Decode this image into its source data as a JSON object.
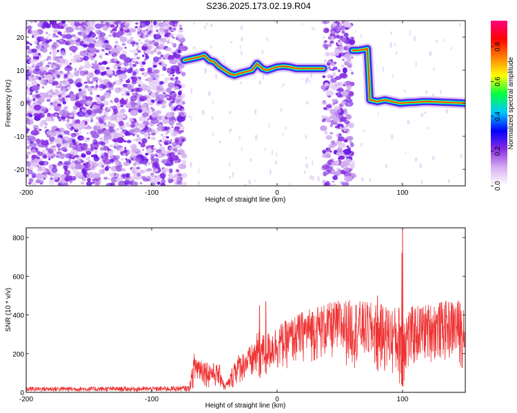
{
  "title": "S236.2025.173.02.19.R04",
  "chart_data": [
    {
      "type": "heatmap",
      "xlabel": "Height of straight line (km)",
      "ylabel": "Frequency (Hz)",
      "xlim": [
        -200,
        150
      ],
      "ylim": [
        -25,
        25
      ],
      "x_ticks": [
        "-200",
        "-100",
        "0",
        "100"
      ],
      "y_ticks": [
        "-20",
        "-10",
        "0",
        "10",
        "20"
      ],
      "colorbar": {
        "label": "Normalized spectral amplitude",
        "range": [
          0,
          0.95
        ],
        "ticks": [
          "0.0",
          "0.2",
          "0.4",
          "0.6",
          "0.8"
        ],
        "colors": [
          "#ffffff",
          "#d8b0f0",
          "#8a2be2",
          "#0000ff",
          "#00c8ff",
          "#00ff40",
          "#ffff00",
          "#ff8000",
          "#ff0000",
          "#ff0080"
        ]
      },
      "noise_regions": [
        {
          "x": [
            -200,
            -74
          ],
          "y": [
            -25,
            25
          ],
          "note_level": "dense"
        },
        {
          "x": [
            37,
            60
          ],
          "y": [
            -25,
            25
          ],
          "note_level": "dense"
        }
      ],
      "ridge": [
        {
          "x": -74,
          "y": 13
        },
        {
          "x": -68,
          "y": 13.5
        },
        {
          "x": -62,
          "y": 14
        },
        {
          "x": -58,
          "y": 14.5
        },
        {
          "x": -54,
          "y": 13
        },
        {
          "x": -50,
          "y": 12.5
        },
        {
          "x": -46,
          "y": 11
        },
        {
          "x": -42,
          "y": 10
        },
        {
          "x": -38,
          "y": 9
        },
        {
          "x": -34,
          "y": 8.5
        },
        {
          "x": -30,
          "y": 9
        },
        {
          "x": -25,
          "y": 9.5
        },
        {
          "x": -20,
          "y": 10
        },
        {
          "x": -16,
          "y": 12
        },
        {
          "x": -12,
          "y": 10.5
        },
        {
          "x": -8,
          "y": 10
        },
        {
          "x": -4,
          "y": 10.5
        },
        {
          "x": 0,
          "y": 11
        },
        {
          "x": 5,
          "y": 11.2
        },
        {
          "x": 10,
          "y": 11
        },
        {
          "x": 15,
          "y": 10.5
        },
        {
          "x": 20,
          "y": 10.5
        },
        {
          "x": 25,
          "y": 10.5
        },
        {
          "x": 30,
          "y": 10.5
        },
        {
          "x": 37,
          "y": 10.5
        },
        {
          "x": 60,
          "y": 16
        },
        {
          "x": 65,
          "y": 16
        },
        {
          "x": 72,
          "y": 16.5
        },
        {
          "x": 74,
          "y": 1
        },
        {
          "x": 80,
          "y": 0.5
        },
        {
          "x": 86,
          "y": 1
        },
        {
          "x": 92,
          "y": 0.5
        },
        {
          "x": 98,
          "y": 0
        },
        {
          "x": 104,
          "y": 0.2
        },
        {
          "x": 110,
          "y": 0.3
        },
        {
          "x": 116,
          "y": 0.5
        },
        {
          "x": 122,
          "y": 0.5
        },
        {
          "x": 128,
          "y": 0.4
        },
        {
          "x": 134,
          "y": 0.3
        },
        {
          "x": 140,
          "y": 0.2
        },
        {
          "x": 150,
          "y": 0
        }
      ]
    },
    {
      "type": "line",
      "xlabel": "Height of straight line (km)",
      "ylabel": "SNR (10 * v/v)",
      "xlim": [
        -200,
        150
      ],
      "ylim": [
        0,
        850
      ],
      "x_ticks": [
        "-200",
        "-100",
        "0",
        "100"
      ],
      "y_ticks": [
        "0",
        "200",
        "400",
        "600",
        "800"
      ],
      "series": [
        {
          "color": "#ee3333",
          "envelope": [
            {
              "x": -200,
              "low": 5,
              "high": 30
            },
            {
              "x": -150,
              "low": 5,
              "high": 30
            },
            {
              "x": -100,
              "low": 5,
              "high": 30
            },
            {
              "x": -70,
              "low": 5,
              "high": 35
            },
            {
              "x": -66,
              "low": 20,
              "high": 210
            },
            {
              "x": -60,
              "low": 40,
              "high": 180
            },
            {
              "x": -55,
              "low": 20,
              "high": 160
            },
            {
              "x": -50,
              "low": 20,
              "high": 150
            },
            {
              "x": -45,
              "low": 15,
              "high": 140
            },
            {
              "x": -42,
              "low": 5,
              "high": 40
            },
            {
              "x": -38,
              "low": 10,
              "high": 80
            },
            {
              "x": -34,
              "low": 20,
              "high": 180
            },
            {
              "x": -30,
              "low": 40,
              "high": 200
            },
            {
              "x": -25,
              "low": 60,
              "high": 220
            },
            {
              "x": -20,
              "low": 40,
              "high": 250
            },
            {
              "x": -15,
              "low": 60,
              "high": 320
            },
            {
              "x": -10,
              "low": 80,
              "high": 300
            },
            {
              "x": -5,
              "low": 100,
              "high": 320
            },
            {
              "x": 0,
              "low": 100,
              "high": 350
            },
            {
              "x": 10,
              "low": 120,
              "high": 380
            },
            {
              "x": 20,
              "low": 150,
              "high": 420
            },
            {
              "x": 30,
              "low": 150,
              "high": 450
            },
            {
              "x": 40,
              "low": 160,
              "high": 460
            },
            {
              "x": 50,
              "low": 150,
              "high": 480
            },
            {
              "x": 60,
              "low": 120,
              "high": 480
            },
            {
              "x": 70,
              "low": 150,
              "high": 470
            },
            {
              "x": 80,
              "low": 100,
              "high": 460
            },
            {
              "x": 90,
              "low": 80,
              "high": 450
            },
            {
              "x": 96,
              "low": 30,
              "high": 440
            },
            {
              "x": 100,
              "low": 20,
              "high": 480
            },
            {
              "x": 104,
              "low": 60,
              "high": 440
            },
            {
              "x": 110,
              "low": 120,
              "high": 450
            },
            {
              "x": 120,
              "low": 150,
              "high": 460
            },
            {
              "x": 130,
              "low": 150,
              "high": 470
            },
            {
              "x": 140,
              "low": 150,
              "high": 480
            },
            {
              "x": 150,
              "low": 100,
              "high": 480
            }
          ],
          "spikes": [
            {
              "x": -9,
              "y": 470
            },
            {
              "x": 100,
              "y": 850
            },
            {
              "x": 99.5,
              "y": 720
            },
            {
              "x": 80,
              "y": 500
            },
            {
              "x": -14,
              "y": 450
            }
          ]
        }
      ]
    }
  ]
}
